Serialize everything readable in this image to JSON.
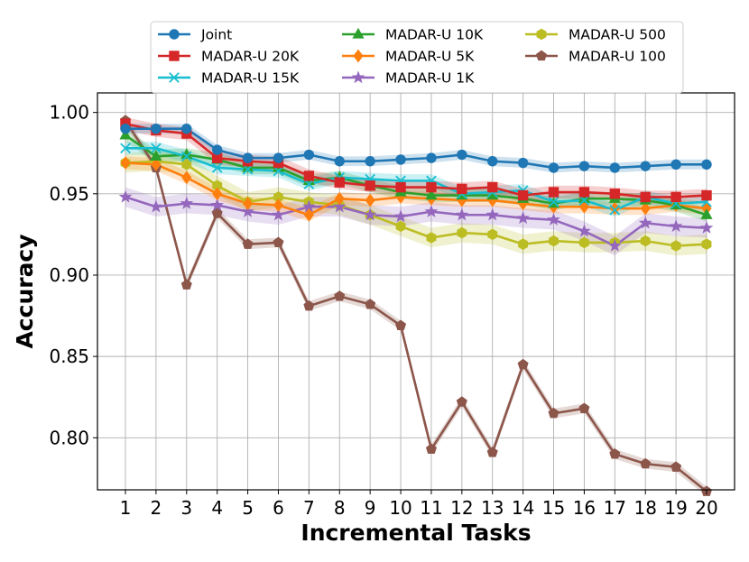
{
  "chart_data": {
    "type": "line",
    "title": "",
    "xlabel": "Incremental Tasks",
    "ylabel": "Accuracy",
    "x": [
      1,
      2,
      3,
      4,
      5,
      6,
      7,
      8,
      9,
      10,
      11,
      12,
      13,
      14,
      15,
      16,
      17,
      18,
      19,
      20
    ],
    "xticks": [
      "1",
      "2",
      "3",
      "4",
      "5",
      "6",
      "7",
      "8",
      "9",
      "10",
      "11",
      "12",
      "13",
      "14",
      "15",
      "16",
      "17",
      "18",
      "19",
      "20"
    ],
    "ylim": [
      0.768,
      1.012
    ],
    "yticks": [
      0.8,
      0.85,
      0.9,
      0.95,
      1.0
    ],
    "ytick_labels": [
      "0.80",
      "0.85",
      "0.90",
      "0.95",
      "1.00"
    ],
    "grid": true,
    "legend_position": "top-center",
    "series": [
      {
        "name": "Joint",
        "color": "#1f77b4",
        "marker": "circle",
        "values": [
          0.99,
          0.99,
          0.99,
          0.977,
          0.972,
          0.972,
          0.974,
          0.97,
          0.97,
          0.971,
          0.972,
          0.974,
          0.97,
          0.969,
          0.966,
          0.967,
          0.966,
          0.967,
          0.968,
          0.968
        ],
        "band": 0.003
      },
      {
        "name": "MADAR-U 20K",
        "color": "#d62728",
        "marker": "square",
        "values": [
          0.993,
          0.989,
          0.987,
          0.972,
          0.97,
          0.969,
          0.961,
          0.957,
          0.955,
          0.954,
          0.954,
          0.953,
          0.954,
          0.949,
          0.951,
          0.951,
          0.95,
          0.948,
          0.948,
          0.949
        ],
        "band": 0.004
      },
      {
        "name": "MADAR-U 15K",
        "color": "#17becf",
        "marker": "x",
        "values": [
          0.978,
          0.978,
          0.973,
          0.966,
          0.965,
          0.964,
          0.956,
          0.96,
          0.959,
          0.958,
          0.958,
          0.95,
          0.951,
          0.952,
          0.945,
          0.946,
          0.94,
          0.948,
          0.944,
          0.945
        ],
        "band": 0.004
      },
      {
        "name": "MADAR-U 10K",
        "color": "#2ca02c",
        "marker": "triangle",
        "values": [
          0.986,
          0.973,
          0.974,
          0.971,
          0.966,
          0.966,
          0.958,
          0.96,
          0.955,
          0.951,
          0.949,
          0.949,
          0.949,
          0.947,
          0.944,
          0.947,
          0.947,
          0.946,
          0.943,
          0.937
        ],
        "band": 0.004
      },
      {
        "name": "MADAR-U 5K",
        "color": "#ff7f0e",
        "marker": "diamond",
        "values": [
          0.969,
          0.968,
          0.96,
          0.95,
          0.944,
          0.943,
          0.937,
          0.947,
          0.946,
          0.948,
          0.947,
          0.946,
          0.946,
          0.944,
          0.942,
          0.942,
          0.941,
          0.941,
          0.943,
          0.941
        ],
        "band": 0.004
      },
      {
        "name": "MADAR-U 1K",
        "color": "#9467bd",
        "marker": "star",
        "values": [
          0.948,
          0.942,
          0.944,
          0.943,
          0.939,
          0.937,
          0.942,
          0.942,
          0.937,
          0.936,
          0.939,
          0.937,
          0.937,
          0.935,
          0.934,
          0.927,
          0.918,
          0.932,
          0.93,
          0.929
        ],
        "band": 0.006
      },
      {
        "name": "MADAR-U 500",
        "color": "#bcbd22",
        "marker": "hexagon",
        "values": [
          0.969,
          0.97,
          0.968,
          0.955,
          0.945,
          0.948,
          0.945,
          0.943,
          0.937,
          0.93,
          0.923,
          0.926,
          0.925,
          0.919,
          0.921,
          0.92,
          0.92,
          0.921,
          0.918,
          0.919
        ],
        "band": 0.006
      },
      {
        "name": "MADAR-U 100",
        "color": "#8c564b",
        "marker": "pentagon",
        "values": [
          0.995,
          0.966,
          0.894,
          0.938,
          0.919,
          0.92,
          0.881,
          0.887,
          0.882,
          0.869,
          0.793,
          0.822,
          0.791,
          0.845,
          0.815,
          0.818,
          0.79,
          0.784,
          0.782,
          0.767
        ],
        "band": 0.003
      }
    ]
  }
}
